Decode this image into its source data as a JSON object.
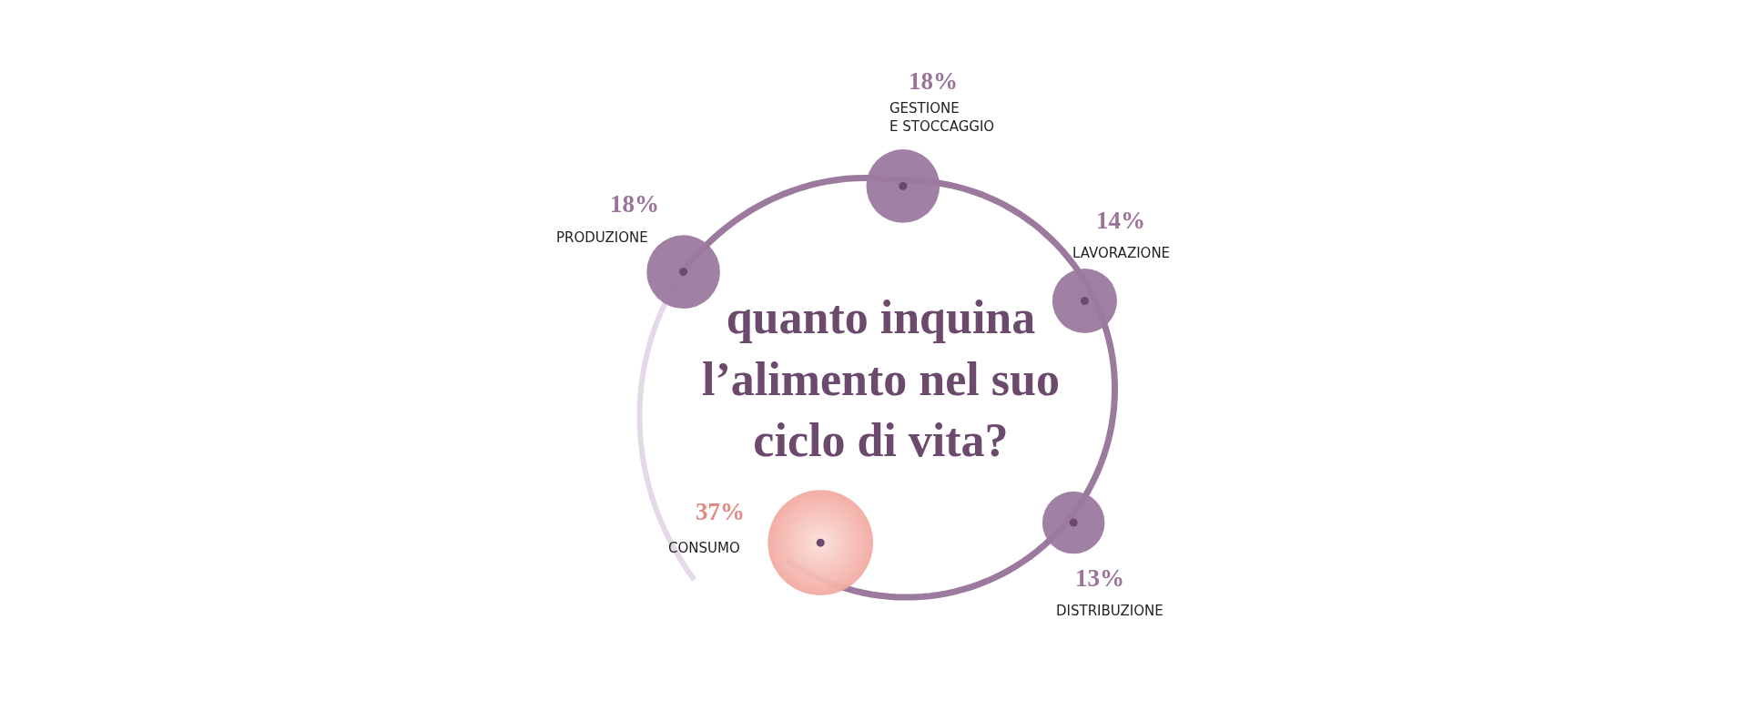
{
  "chart_data": {
    "type": "other",
    "title": "quanto inquina\nl’alimento nel suo\nciclo di vita?",
    "categories": [
      "PRODUZIONE",
      "GESTIONE\nE STOCCAGGIO",
      "LAVORAZIONE",
      "DISTRIBUZIONE",
      "CONSUMO"
    ],
    "values": [
      18,
      18,
      14,
      13,
      37
    ],
    "value_labels": [
      "18%",
      "18%",
      "14%",
      "13%",
      "37%"
    ],
    "colors": [
      "#9b7a9e",
      "#9b7a9e",
      "#9b7a9e",
      "#9b7a9e",
      "#f2aaa2"
    ]
  }
}
